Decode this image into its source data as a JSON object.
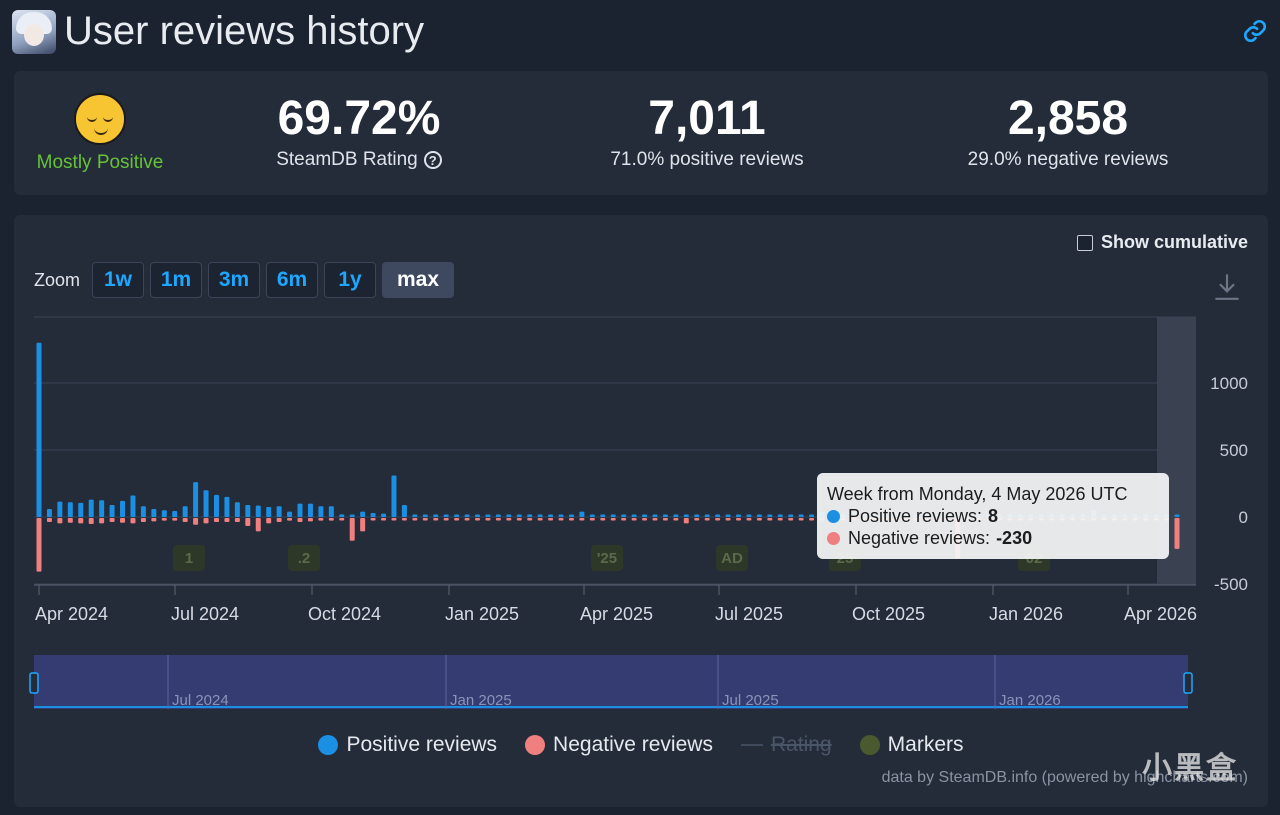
{
  "header": {
    "title": "User reviews history"
  },
  "stats": {
    "verdict": "Mostly Positive",
    "rating_value": "69.72%",
    "rating_label": "SteamDB Rating",
    "help_glyph": "?",
    "positive_count": "7,011",
    "positive_label": "71.0% positive reviews",
    "negative_count": "2,858",
    "negative_label": "29.0% negative reviews",
    "verdict_color": "#66c236"
  },
  "controls": {
    "show_cumulative": "Show cumulative",
    "zoom_label": "Zoom",
    "zoom_buttons": [
      "1w",
      "1m",
      "3m",
      "6m",
      "1y",
      "max"
    ],
    "zoom_active": "max"
  },
  "tooltip": {
    "heading": "Week from Monday, 4 May 2026 UTC",
    "positive_label": "Positive reviews:",
    "positive_value": "8",
    "negative_label": "Negative reviews:",
    "negative_value": "-230"
  },
  "legend": {
    "positive": "Positive reviews",
    "negative": "Negative reviews",
    "rating": "Rating",
    "markers": "Markers"
  },
  "credit": "data by SteamDB.info (powered by highcharts.com)",
  "watermark": "小黑盒",
  "colors": {
    "positive": "#1a8fe3",
    "negative": "#f07f7f",
    "marker": "#4a5a2e",
    "background": "#242c3a"
  },
  "chart_data": {
    "type": "bar",
    "x_axis": {
      "type": "datetime",
      "tick_labels": [
        "Apr 2024",
        "Jul 2024",
        "Oct 2024",
        "Jan 2025",
        "Apr 2025",
        "Jul 2025",
        "Oct 2025",
        "Jan 2026",
        "Apr 2026"
      ]
    },
    "y_axis": {
      "tick_labels": [
        "1000",
        "500",
        "0",
        "-500"
      ],
      "range": [
        -500,
        1500
      ],
      "position": "right"
    },
    "navigator_labels": [
      "Jul 2024",
      "Jan 2025",
      "Jul 2025",
      "Jan 2026"
    ],
    "markers": [
      "1",
      ".2",
      "'25",
      "AD",
      "25",
      "02"
    ],
    "series": [
      {
        "name": "Positive reviews",
        "values": [
          1300,
          60,
          115,
          110,
          105,
          130,
          125,
          90,
          120,
          160,
          80,
          60,
          50,
          45,
          80,
          260,
          200,
          165,
          150,
          110,
          90,
          85,
          75,
          80,
          40,
          100,
          100,
          80,
          80,
          20,
          15,
          40,
          30,
          25,
          310,
          90,
          10,
          12,
          12,
          10,
          8,
          9,
          10,
          10,
          8,
          6,
          15,
          20,
          8,
          6,
          5,
          10,
          40,
          10,
          15,
          8,
          6,
          8,
          5,
          8,
          10,
          15,
          10,
          8,
          12,
          15,
          10,
          8,
          8,
          10,
          8,
          6,
          15,
          10,
          12,
          40,
          8,
          8,
          40,
          30,
          20,
          25,
          30,
          15,
          8,
          40,
          10,
          12,
          15,
          8,
          20,
          15,
          10,
          8,
          12,
          8,
          10,
          10,
          12,
          8,
          8,
          50,
          8,
          20,
          8,
          10,
          12,
          8,
          10,
          8
        ]
      },
      {
        "name": "Negative reviews",
        "values": [
          -400,
          -30,
          -40,
          -35,
          -40,
          -45,
          -40,
          -30,
          -35,
          -40,
          -30,
          -25,
          -20,
          -20,
          -30,
          -50,
          -40,
          -30,
          -30,
          -30,
          -60,
          -100,
          -40,
          -30,
          -20,
          -30,
          -25,
          -20,
          -20,
          -10,
          -170,
          -100,
          -10,
          -10,
          -10,
          -10,
          -8,
          -5,
          -5,
          -8,
          -5,
          -6,
          -5,
          -5,
          -5,
          -5,
          -5,
          -5,
          -5,
          -5,
          -5,
          -5,
          -5,
          -5,
          -5,
          -5,
          -5,
          -5,
          -5,
          -5,
          -5,
          -5,
          -40,
          -10,
          -5,
          -5,
          -5,
          -5,
          -5,
          -5,
          -5,
          -5,
          -5,
          -5,
          -5,
          -5,
          -20,
          -10,
          -5,
          -5,
          -5,
          -5,
          -5,
          -5,
          -5,
          -5,
          -5,
          -5,
          -300,
          -5,
          -5,
          -5,
          -5,
          -5,
          -5,
          -5,
          -5,
          -5,
          -5,
          -5,
          -5,
          -5,
          -5,
          -5,
          -5,
          -20,
          -20,
          -5,
          -5,
          -230
        ]
      }
    ]
  }
}
